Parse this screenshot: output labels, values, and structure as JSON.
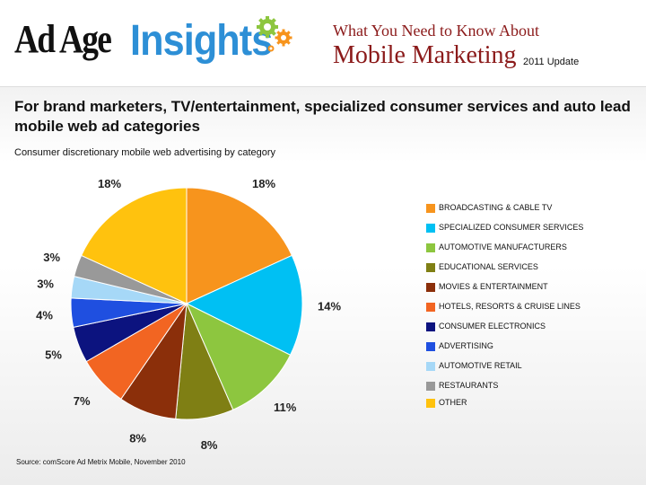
{
  "header": {
    "logo_part1": "Ad Age",
    "logo_part2": "Insights",
    "title_line1": "What You Need to Know About",
    "title_line2": "Mobile Marketing",
    "update_label": "2011 Update"
  },
  "headline": "For brand marketers, TV/entertainment, specialized consumer services and auto lead mobile web ad categories",
  "source": "Source: comScore Ad Metrix Mobile, November 2010",
  "colors": {
    "title_red": "#8b1a1a",
    "insights_blue": "#2d8fd6"
  },
  "chart_data": {
    "type": "pie",
    "title": "Consumer discretionary mobile web advertising by category",
    "legend_position": "right",
    "slices": [
      {
        "label": "BROADCASTING & CABLE TV",
        "value": 18,
        "display": "18%",
        "color": "#f7941d"
      },
      {
        "label": "SPECIALIZED CONSUMER SERVICES",
        "value": 14,
        "display": "14%",
        "color": "#00c0f3"
      },
      {
        "label": "AUTOMOTIVE MANUFACTURERS",
        "value": 11,
        "display": "11%",
        "color": "#8dc63f"
      },
      {
        "label": "EDUCATIONAL SERVICES",
        "value": 8,
        "display": "8%",
        "color": "#7f7f14"
      },
      {
        "label": "MOVIES & ENTERTAINMENT",
        "value": 8,
        "display": "8%",
        "color": "#8b2f0a"
      },
      {
        "label": "HOTELS, RESORTS & CRUISE LINES",
        "value": 7,
        "display": "7%",
        "color": "#f26522"
      },
      {
        "label": "CONSUMER ELECTRONICS",
        "value": 5,
        "display": "5%",
        "color": "#0c137f"
      },
      {
        "label": "ADVERTISING",
        "value": 4,
        "display": "4%",
        "color": "#1f4fe0"
      },
      {
        "label": "AUTOMOTIVE RETAIL",
        "value": 3,
        "display": "3%",
        "color": "#a6d8f7"
      },
      {
        "label": "RESTAURANTS",
        "value": 3,
        "display": "3%",
        "color": "#999999"
      },
      {
        "label": "OTHER",
        "value": 18,
        "display": "18%",
        "color": "#ffc20e"
      }
    ]
  }
}
